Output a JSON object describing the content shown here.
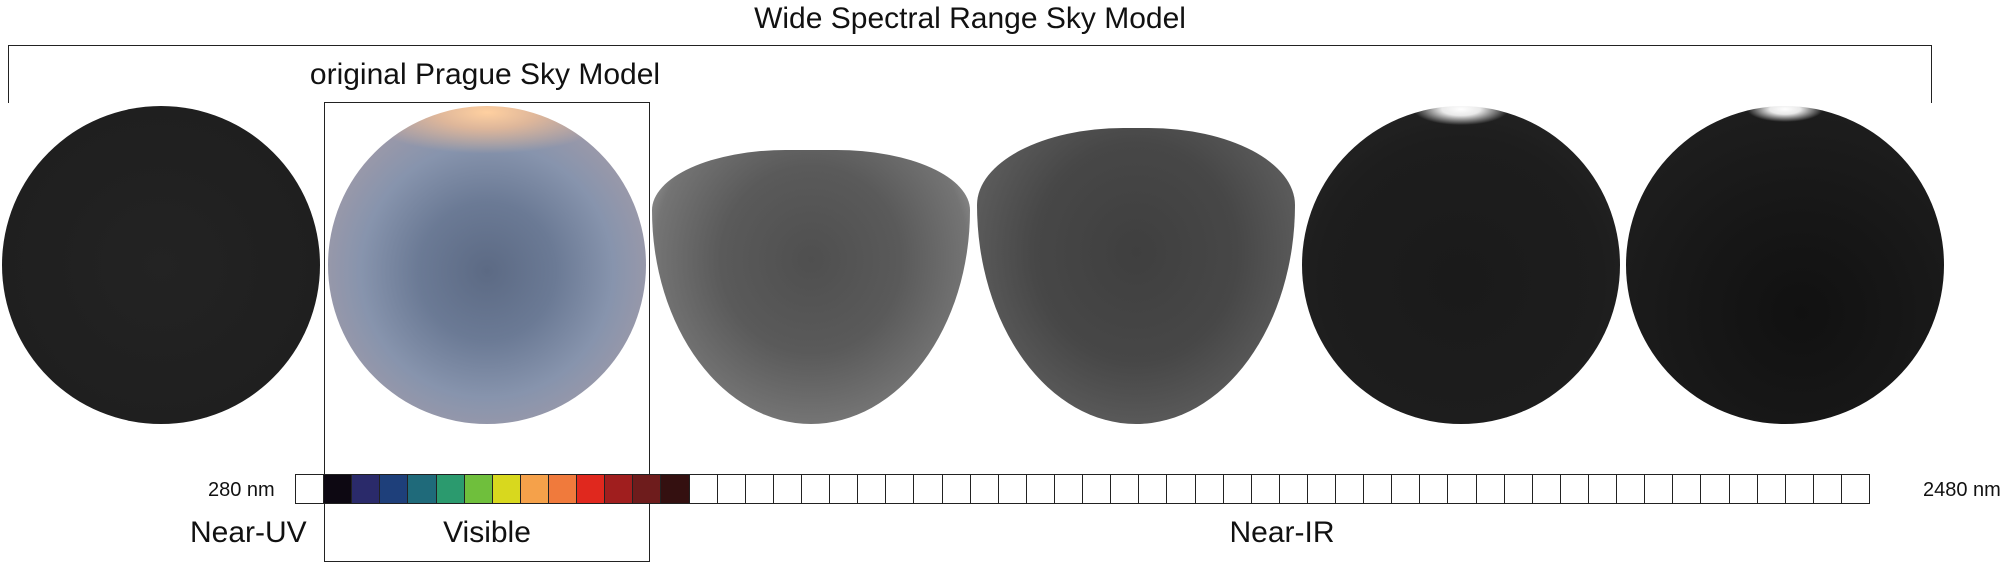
{
  "title": "Wide Spectral Range Sky Model",
  "sublabel": "original Prague Sky Model",
  "spheres": [
    {
      "name": "near-uv-sky",
      "band": "Near-UV"
    },
    {
      "name": "visible-sky",
      "band": "Visible"
    },
    {
      "name": "near-ir-sky-1",
      "band": "Near-IR"
    },
    {
      "name": "near-ir-sky-2",
      "band": "Near-IR"
    },
    {
      "name": "near-ir-sky-3",
      "band": "Near-IR"
    },
    {
      "name": "near-ir-sky-4",
      "band": "Near-IR"
    }
  ],
  "spectrum_bar": {
    "start_label": "280 nm",
    "end_label": "2480 nm",
    "cells": [
      "#ffffff",
      "#0d0812",
      "#2a2a6a",
      "#1e3f7a",
      "#1f6a7a",
      "#2b9a6e",
      "#6fbf3c",
      "#d8d81e",
      "#f5a14a",
      "#f07a3c",
      "#e0281e",
      "#a01e1e",
      "#6e1c1c",
      "#341010",
      "#ffffff",
      "#ffffff",
      "#ffffff",
      "#ffffff",
      "#ffffff",
      "#ffffff",
      "#ffffff",
      "#ffffff",
      "#ffffff",
      "#ffffff",
      "#ffffff",
      "#ffffff",
      "#ffffff",
      "#ffffff",
      "#ffffff",
      "#ffffff",
      "#ffffff",
      "#ffffff",
      "#ffffff",
      "#ffffff",
      "#ffffff",
      "#ffffff",
      "#ffffff",
      "#ffffff",
      "#ffffff",
      "#ffffff",
      "#ffffff",
      "#ffffff",
      "#ffffff",
      "#ffffff",
      "#ffffff",
      "#ffffff",
      "#ffffff",
      "#ffffff",
      "#ffffff",
      "#ffffff",
      "#ffffff",
      "#ffffff",
      "#ffffff",
      "#ffffff",
      "#ffffff",
      "#ffffff"
    ]
  },
  "regions": {
    "near_uv": "Near-UV",
    "visible": "Visible",
    "near_ir": "Near-IR"
  }
}
